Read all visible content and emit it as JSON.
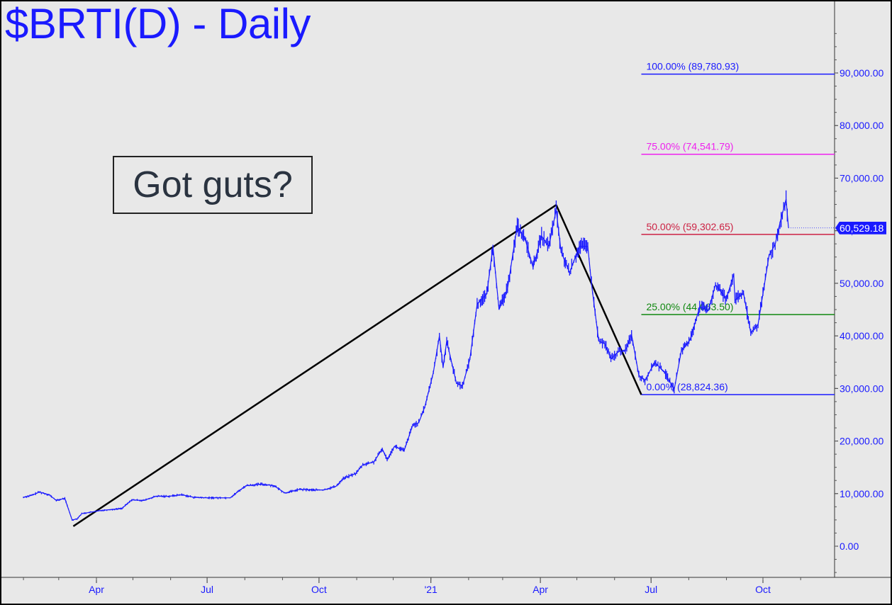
{
  "title": "$BRTI(D) - Daily",
  "callout": "Got guts?",
  "last_price_label": "60,529.18",
  "colors": {
    "price": "#1a1aff",
    "trendline": "#000000",
    "fib_100": "#1a1aff",
    "fib_75": "#ee22ee",
    "fib_50": "#cc2244",
    "fib_25": "#118811",
    "fib_0": "#1a1aff",
    "background": "#e8e8e8"
  },
  "chart_data": {
    "type": "line",
    "title": "$BRTI(D) - Daily",
    "xlabel": "",
    "ylabel": "",
    "ylim": [
      -5000,
      100000
    ],
    "grid": false,
    "y_ticks": [
      "0.00",
      "10,000.00",
      "20,000.00",
      "30,000.00",
      "40,000.00",
      "50,000.00",
      "60,000.00",
      "70,000.00",
      "80,000.00",
      "90,000.00"
    ],
    "y_tick_values": [
      0,
      10000,
      20000,
      30000,
      40000,
      50000,
      60000,
      70000,
      80000,
      90000
    ],
    "x_ticks": [
      "Apr",
      "Jul",
      "Oct",
      "'21",
      "Apr",
      "Jul",
      "Oct"
    ],
    "x_tick_dates": [
      "2020-04-01",
      "2020-07-01",
      "2020-10-01",
      "2021-01-01",
      "2021-04-01",
      "2021-07-01",
      "2021-10-01"
    ],
    "xlim": [
      "2020-02-01",
      "2021-12-25"
    ],
    "series": [
      {
        "name": "",
        "points": [
          [
            "2020-02-01",
            9300
          ],
          [
            "2020-02-08",
            9700
          ],
          [
            "2020-02-14",
            10300
          ],
          [
            "2020-02-22",
            9800
          ],
          [
            "2020-02-28",
            8700
          ],
          [
            "2020-03-06",
            9100
          ],
          [
            "2020-03-12",
            5000
          ],
          [
            "2020-03-16",
            5200
          ],
          [
            "2020-03-20",
            6200
          ],
          [
            "2020-03-28",
            6500
          ],
          [
            "2020-04-05",
            6800
          ],
          [
            "2020-04-15",
            7000
          ],
          [
            "2020-04-22",
            7200
          ],
          [
            "2020-04-30",
            8800
          ],
          [
            "2020-05-10",
            8700
          ],
          [
            "2020-05-20",
            9500
          ],
          [
            "2020-05-31",
            9500
          ],
          [
            "2020-06-10",
            9800
          ],
          [
            "2020-06-20",
            9300
          ],
          [
            "2020-06-30",
            9200
          ],
          [
            "2020-07-10",
            9200
          ],
          [
            "2020-07-20",
            9200
          ],
          [
            "2020-07-27",
            10500
          ],
          [
            "2020-08-02",
            11500
          ],
          [
            "2020-08-15",
            11800
          ],
          [
            "2020-08-25",
            11500
          ],
          [
            "2020-09-03",
            10100
          ],
          [
            "2020-09-15",
            10800
          ],
          [
            "2020-09-25",
            10700
          ],
          [
            "2020-10-05",
            10700
          ],
          [
            "2020-10-15",
            11400
          ],
          [
            "2020-10-21",
            12900
          ],
          [
            "2020-10-31",
            13800
          ],
          [
            "2020-11-06",
            15500
          ],
          [
            "2020-11-15",
            16000
          ],
          [
            "2020-11-22",
            18500
          ],
          [
            "2020-11-26",
            16500
          ],
          [
            "2020-12-02",
            19000
          ],
          [
            "2020-12-10",
            18200
          ],
          [
            "2020-12-17",
            23000
          ],
          [
            "2020-12-22",
            23500
          ],
          [
            "2020-12-27",
            26500
          ],
          [
            "2021-01-03",
            33000
          ],
          [
            "2021-01-08",
            40000
          ],
          [
            "2021-01-11",
            34000
          ],
          [
            "2021-01-14",
            39000
          ],
          [
            "2021-01-22",
            31000
          ],
          [
            "2021-01-27",
            30500
          ],
          [
            "2021-02-02",
            35500
          ],
          [
            "2021-02-08",
            46000
          ],
          [
            "2021-02-16",
            48000
          ],
          [
            "2021-02-21",
            57000
          ],
          [
            "2021-02-26",
            45000
          ],
          [
            "2021-03-05",
            49000
          ],
          [
            "2021-03-13",
            61000
          ],
          [
            "2021-03-20",
            58000
          ],
          [
            "2021-03-26",
            53000
          ],
          [
            "2021-04-02",
            59000
          ],
          [
            "2021-04-08",
            57000
          ],
          [
            "2021-04-14",
            64000
          ],
          [
            "2021-04-18",
            56000
          ],
          [
            "2021-04-25",
            52000
          ],
          [
            "2021-05-03",
            57000
          ],
          [
            "2021-05-10",
            57000
          ],
          [
            "2021-05-13",
            50000
          ],
          [
            "2021-05-19",
            39000
          ],
          [
            "2021-05-24",
            38500
          ],
          [
            "2021-05-29",
            35600
          ],
          [
            "2021-06-04",
            37000
          ],
          [
            "2021-06-10",
            37300
          ],
          [
            "2021-06-15",
            40200
          ],
          [
            "2021-06-21",
            32500
          ],
          [
            "2021-06-26",
            31500
          ],
          [
            "2021-07-04",
            35000
          ],
          [
            "2021-07-12",
            33100
          ],
          [
            "2021-07-20",
            29800
          ],
          [
            "2021-07-26",
            37300
          ],
          [
            "2021-08-02",
            39200
          ],
          [
            "2021-08-10",
            45500
          ],
          [
            "2021-08-17",
            44800
          ],
          [
            "2021-08-23",
            49700
          ],
          [
            "2021-09-01",
            47100
          ],
          [
            "2021-09-07",
            51700
          ],
          [
            "2021-09-08",
            46800
          ],
          [
            "2021-09-15",
            48100
          ],
          [
            "2021-09-21",
            40600
          ],
          [
            "2021-09-27",
            42200
          ],
          [
            "2021-10-01",
            48000
          ],
          [
            "2021-10-06",
            55300
          ],
          [
            "2021-10-11",
            57400
          ],
          [
            "2021-10-15",
            61500
          ],
          [
            "2021-10-20",
            66000
          ],
          [
            "2021-10-22",
            60529.18
          ]
        ]
      }
    ],
    "trendlines": [
      {
        "from": [
          "2020-03-13",
          3800
        ],
        "to": [
          "2021-04-14",
          64900
        ]
      },
      {
        "from": [
          "2021-04-14",
          64900
        ],
        "to": [
          "2021-06-23",
          28824.36
        ]
      }
    ],
    "fibonacci_levels": [
      {
        "label": "100.00% (89,780.93)",
        "percent": 100,
        "value": 89780.93,
        "color_key": "fib_100"
      },
      {
        "label": "75.00% (74,541.79)",
        "percent": 75,
        "value": 74541.79,
        "color_key": "fib_75"
      },
      {
        "label": "50.00% (59,302.65)",
        "percent": 50,
        "value": 59302.65,
        "color_key": "fib_50"
      },
      {
        "label": "25.00% (44,063.50)",
        "percent": 25,
        "value": 44063.5,
        "color_key": "fib_25"
      },
      {
        "label": "0.00% (28,824.36)",
        "percent": 0,
        "value": 28824.36,
        "color_key": "fib_0"
      }
    ],
    "fibonacci_start": "2021-06-23",
    "last_value": 60529.18
  }
}
